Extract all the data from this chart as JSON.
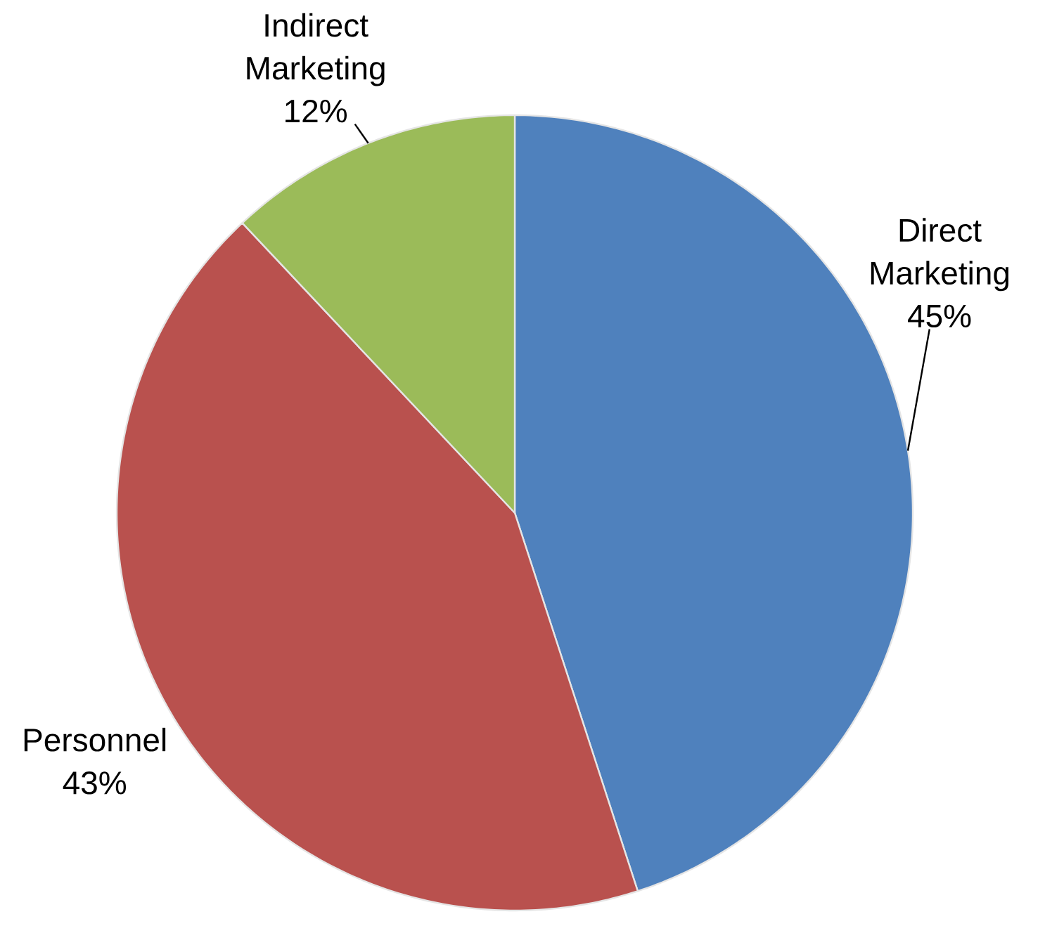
{
  "chart_data": {
    "type": "pie",
    "categories": [
      "Direct Marketing",
      "Personnel",
      "Indirect Marketing"
    ],
    "values": [
      45,
      43,
      12
    ],
    "colors": [
      "#4f81bd",
      "#b9514e",
      "#9bbb59"
    ],
    "value_labels": [
      "45%",
      "43%",
      "12%"
    ]
  }
}
